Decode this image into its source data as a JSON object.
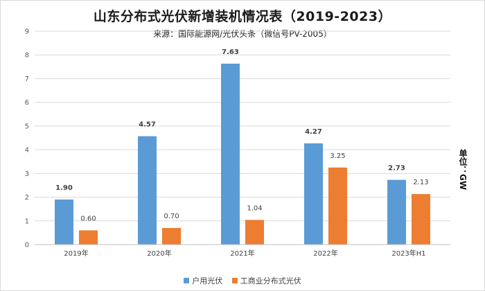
{
  "chart_data": {
    "type": "bar",
    "title": "山东分布式光伏新增装机情况表（2019-2023）",
    "subtitle": "来源：国际能源网/光伏头条（微信号PV-2005）",
    "unit_label": "单位：GW",
    "categories": [
      "2019年",
      "2020年",
      "2021年",
      "2022年",
      "2023年H1"
    ],
    "series": [
      {
        "name": "户用光伏",
        "color": "#5b9bd5",
        "values": [
          1.9,
          4.57,
          7.63,
          4.27,
          2.73
        ],
        "labels": [
          "1.90",
          "4.57",
          "7.63",
          "4.27",
          "2.73"
        ]
      },
      {
        "name": "工商业分布式光伏",
        "color": "#ed7d31",
        "values": [
          0.6,
          0.7,
          1.04,
          3.25,
          2.13
        ],
        "labels": [
          "0.60",
          "0.70",
          "1.04",
          "3.25",
          "2.13"
        ]
      }
    ],
    "ylim": [
      0,
      9
    ],
    "yticks": [
      "0",
      "1",
      "2",
      "3",
      "4",
      "5",
      "6",
      "7",
      "8",
      "9"
    ],
    "grid": true,
    "legend_position": "bottom"
  }
}
